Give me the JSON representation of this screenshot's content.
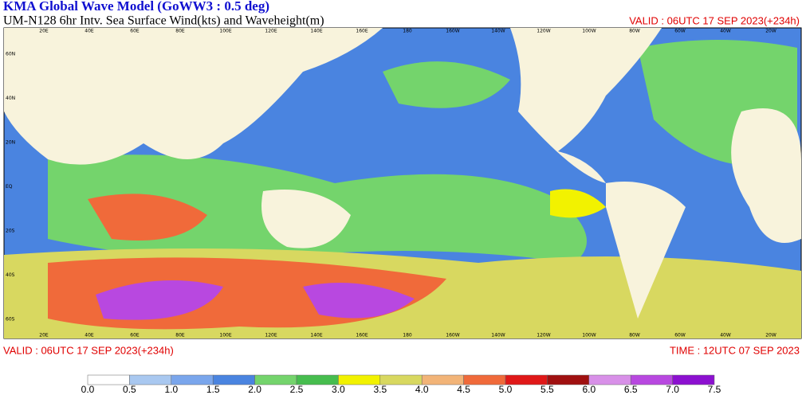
{
  "header": {
    "title": "KMA  Global Wave Model (GoWW3 : 0.5 deg)",
    "subtitle": "UM-N128  6hr Intv. Sea Surface Wind(kts) and Waveheight(m)",
    "valid_top": "VALID : 06UTC 17 SEP 2023(+234h)"
  },
  "map": {
    "longitudes": [
      "20E",
      "40E",
      "60E",
      "80E",
      "100E",
      "120E",
      "140E",
      "160E",
      "180",
      "160W",
      "140W",
      "120W",
      "100W",
      "80W",
      "60W",
      "40W",
      "20W"
    ],
    "latitudes": [
      "60N",
      "40N",
      "20N",
      "EQ",
      "20S",
      "40S",
      "60S"
    ]
  },
  "footer": {
    "valid": "VALID : 06UTC 17 SEP 2023(+234h)",
    "time": "TIME : 12UTC 07 SEP 2023"
  },
  "colorbar": {
    "labels": [
      "0.0",
      "0.5",
      "1.0",
      "1.5",
      "2.0",
      "2.5",
      "3.0",
      "3.5",
      "4.0",
      "4.5",
      "5.0",
      "5.5",
      "6.0",
      "6.5",
      "7.0",
      "7.5"
    ],
    "colors": [
      "#ffffff",
      "#a9c8f0",
      "#7aa6ec",
      "#4a84e0",
      "#74d46c",
      "#46bd4e",
      "#f2f200",
      "#d8d860",
      "#f2b478",
      "#f06a3a",
      "#e01818",
      "#a01010",
      "#d890e8",
      "#b848e0",
      "#8c10d0"
    ]
  }
}
